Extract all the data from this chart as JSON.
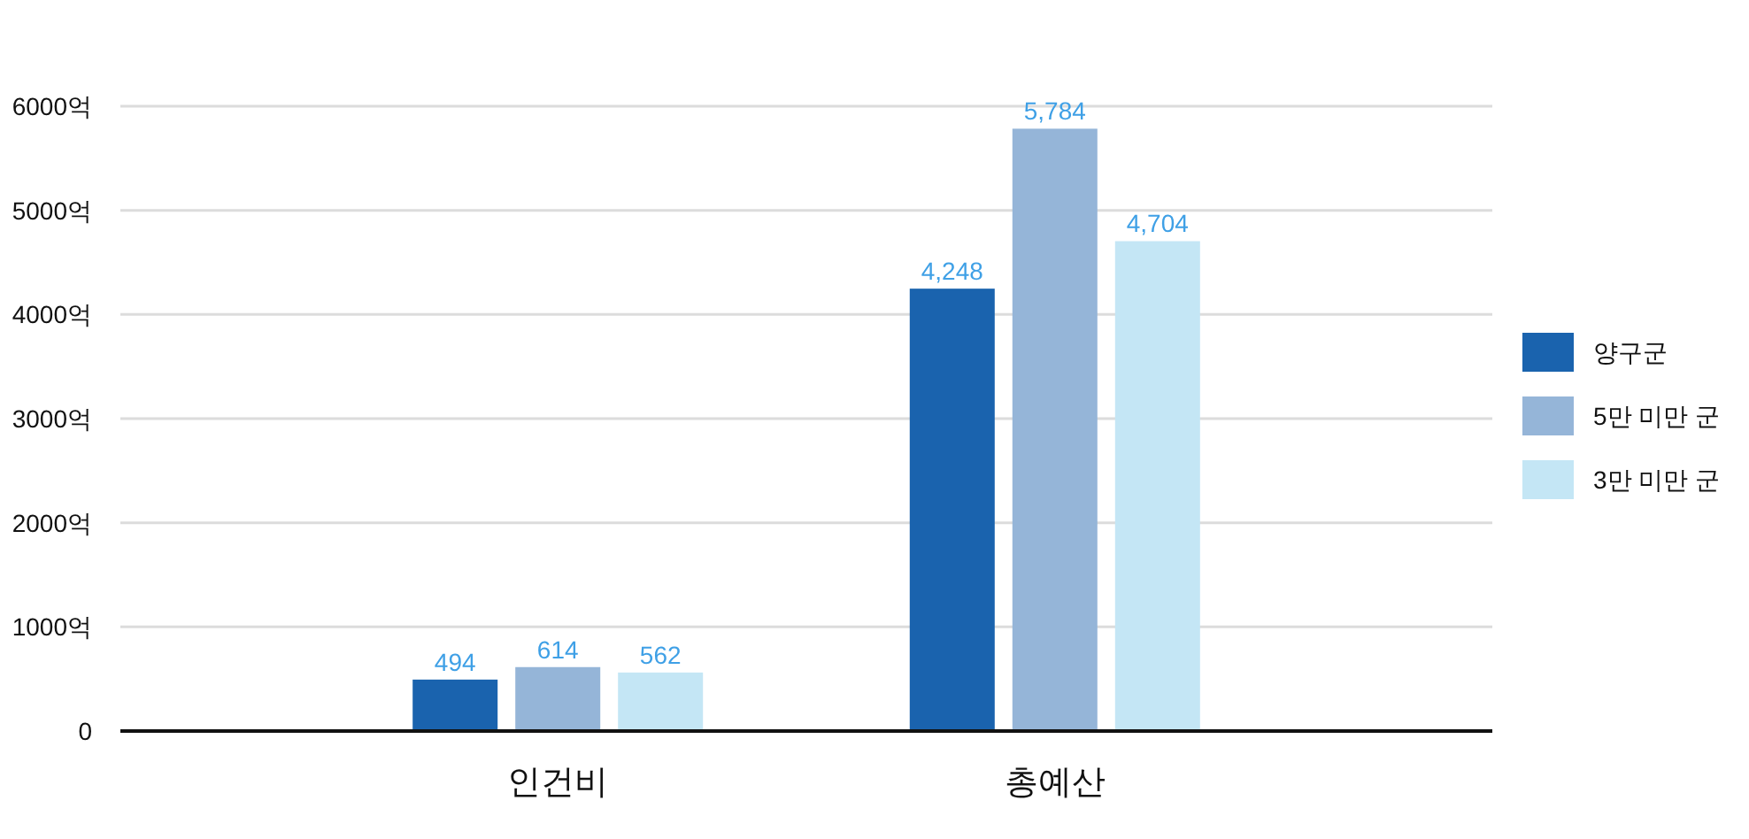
{
  "chart_data": {
    "type": "bar",
    "categories": [
      "인건비",
      "총예산"
    ],
    "series": [
      {
        "name": "양구군",
        "color": "#1a63ae",
        "values": [
          494,
          4248
        ],
        "value_labels": [
          "494",
          "4,248"
        ]
      },
      {
        "name": "5만 미만 군",
        "color": "#95b5d8",
        "values": [
          614,
          5784
        ],
        "value_labels": [
          "614",
          "5,784"
        ]
      },
      {
        "name": "3만 미만 군",
        "color": "#c4e6f5",
        "values": [
          562,
          4704
        ],
        "value_labels": [
          "562",
          "4,704"
        ]
      }
    ],
    "ylim": [
      0,
      6000
    ],
    "yticks": [
      0,
      {
        "value": 1000,
        "label": "1000억"
      },
      {
        "value": 2000,
        "label": "2000억"
      },
      {
        "value": 3000,
        "label": "3000억"
      },
      {
        "value": 4000,
        "label": "4000억"
      },
      {
        "value": 5000,
        "label": "5000억"
      },
      {
        "value": 6000,
        "label": "6000억"
      }
    ],
    "grid": "y",
    "legend": "right"
  }
}
